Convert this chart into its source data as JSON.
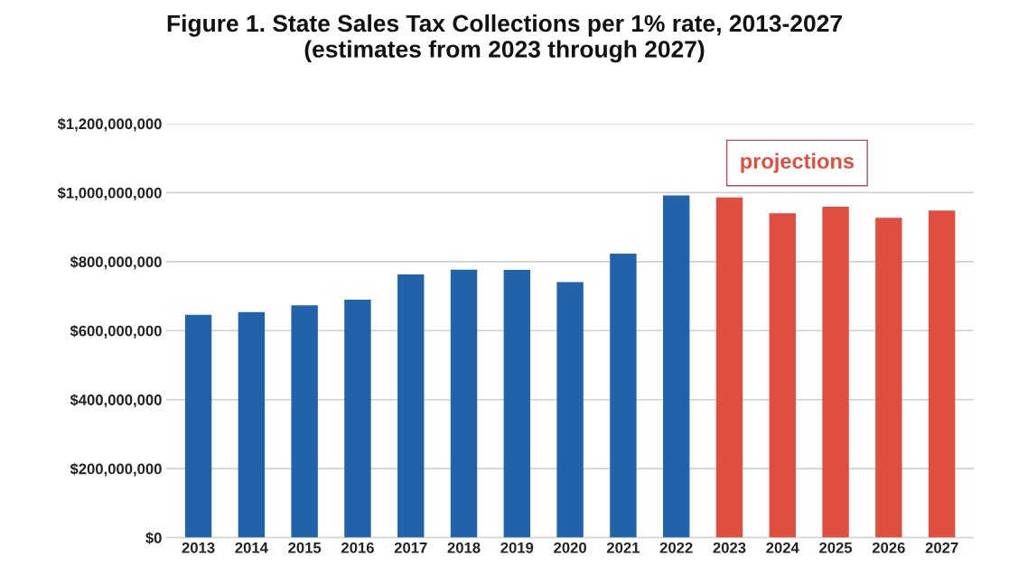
{
  "chart_data": {
    "type": "bar",
    "title": "Figure 1. State Sales Tax Collections per 1% rate, 2013-2027\n(estimates from 2023 through 2027)",
    "categories": [
      "2013",
      "2014",
      "2015",
      "2016",
      "2017",
      "2018",
      "2019",
      "2020",
      "2021",
      "2022",
      "2023",
      "2024",
      "2025",
      "2026",
      "2027"
    ],
    "values": [
      646000000,
      654000000,
      673000000,
      690000000,
      763000000,
      777000000,
      776000000,
      741000000,
      823000000,
      992000000,
      986000000,
      940000000,
      959000000,
      927000000,
      948000000
    ],
    "colors": [
      "#2163ab",
      "#2163ab",
      "#2163ab",
      "#2163ab",
      "#2163ab",
      "#2163ab",
      "#2163ab",
      "#2163ab",
      "#2163ab",
      "#2163ab",
      "#e04e40",
      "#e04e40",
      "#e04e40",
      "#e04e40",
      "#e04e40"
    ],
    "ylim": [
      0,
      1200000000
    ],
    "yticks": [
      {
        "value": 0,
        "label": "$0"
      },
      {
        "value": 200000000,
        "label": "$200,000,000"
      },
      {
        "value": 400000000,
        "label": "$400,000,000"
      },
      {
        "value": 600000000,
        "label": "$600,000,000"
      },
      {
        "value": 800000000,
        "label": "$800,000,000"
      },
      {
        "value": 1000000000,
        "label": "$1,000,000,000"
      },
      {
        "value": 1200000000,
        "label": "$1,200,000,000"
      }
    ],
    "grid": "y",
    "annotations": [
      "projections"
    ]
  }
}
